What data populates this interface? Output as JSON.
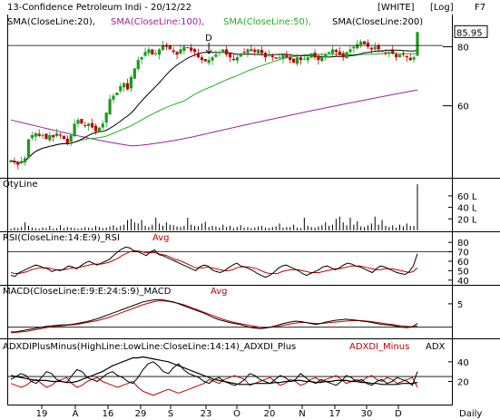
{
  "header": {
    "title": "13-Confidence Petroleum Indi - 20/12/22",
    "theme_badge": "[WHITE]",
    "scale_badge": "[Log]",
    "fkey": "F7"
  },
  "legend": {
    "sma20": "SMA(CloseLine:20),",
    "sma100": "SMA(CloseLine:100),",
    "sma50": "SMA(CloseLine:50),",
    "sma200": "SMA(CloseLine:200)"
  },
  "colors": {
    "sma20": "#000000",
    "sma100": "#a020a0",
    "sma50": "#22b022",
    "sma200": "#000000",
    "up": "#1a9a1a",
    "down": "#c00000",
    "rsi": "#000000",
    "rsi_avg": "#c00000",
    "macd": "#000000",
    "macd_avg": "#c00000",
    "adx": "#000000",
    "di_plus": "#000000",
    "di_minus": "#c00000"
  },
  "panels": {
    "qty_title": "QtyLine",
    "rsi_title": "RSI(CloseLine:14:E:9)_RSI",
    "rsi_avg": "Avg",
    "macd_title": "MACD(CloseLine:E:9:E:24:S:9)_MACD",
    "macd_avg": "Avg",
    "adx_title": "ADXDIPlusMinus(HighLine:LowLine:CloseLine:14:14)_ADXDI_Plus",
    "adx_minus": "ADXDI_Minus",
    "adx_adx": "ADX"
  },
  "price_marker": {
    "label": "D"
  },
  "footer": {
    "period": "Daily"
  },
  "chart_data": [
    {
      "type": "candlestick",
      "title": "13-Confidence Petroleum Indi - 20/12/22",
      "scale": "log",
      "yaxis_ticks": [
        60,
        80
      ],
      "last_price_label": "85.95",
      "x_ticks": [
        "19",
        "A",
        "16",
        "29",
        "S",
        "23",
        "O",
        "20",
        "N",
        "17",
        "30",
        "D"
      ],
      "close": [
        46,
        45.5,
        45,
        45.8,
        46.5,
        51,
        52,
        52.5,
        51.8,
        52,
        51,
        52,
        51.5,
        52.5,
        52,
        51,
        50,
        52,
        55,
        56,
        55,
        54.5,
        55,
        54,
        53,
        54,
        55,
        58,
        62,
        63,
        64,
        66,
        67,
        65,
        69,
        72,
        75,
        76,
        78,
        79,
        77,
        77.5,
        79,
        80.5,
        80,
        79,
        78,
        77,
        79,
        80,
        79.5,
        78.5,
        78,
        76,
        75,
        74.5,
        75,
        76,
        77,
        78,
        79,
        77,
        76,
        75,
        76,
        77.5,
        78,
        79,
        78.5,
        78,
        79,
        77.5,
        76,
        77,
        76,
        75.5,
        76,
        77,
        76,
        75,
        74,
        76,
        75,
        75.5,
        76,
        77.5,
        76,
        75,
        76,
        77,
        78,
        79,
        78,
        77,
        76,
        78,
        79,
        80,
        81,
        82,
        81,
        80,
        79,
        80,
        79,
        78,
        77.5,
        78,
        77.5,
        76,
        77,
        77,
        76,
        75,
        76,
        85.95
      ],
      "series": [
        {
          "name": "SMA(CloseLine:20)",
          "role": "sma20"
        },
        {
          "name": "SMA(CloseLine:100)",
          "role": "sma100"
        },
        {
          "name": "SMA(CloseLine:50)",
          "role": "sma50"
        },
        {
          "name": "SMA(CloseLine:200)",
          "role": "sma200"
        }
      ]
    },
    {
      "type": "bar",
      "title": "QtyLine",
      "yaxis_ticks": [
        "60 L",
        "40 L",
        "20 L"
      ],
      "values": [
        3,
        5,
        4,
        6,
        14,
        8,
        5,
        4,
        3,
        5,
        4,
        8,
        3,
        4,
        9,
        4,
        6,
        5,
        4,
        3,
        4,
        6,
        5,
        4,
        8,
        6,
        4,
        5,
        7,
        9,
        5,
        8,
        10,
        18,
        20,
        14,
        12,
        18,
        8,
        6,
        10,
        22,
        12,
        8,
        14,
        10,
        9,
        7,
        6,
        8,
        22,
        10,
        8,
        7,
        12,
        15,
        6,
        8,
        7,
        5,
        10,
        6,
        8,
        4,
        6,
        9,
        5,
        6,
        4,
        5,
        7,
        8,
        5,
        4,
        6,
        7,
        12,
        5,
        6,
        6,
        10,
        5,
        4,
        22,
        8,
        6,
        5,
        7,
        9,
        14,
        8,
        10,
        20,
        24,
        14,
        9,
        22,
        10,
        16,
        7,
        6,
        9,
        12,
        24,
        10,
        18,
        8,
        6,
        9,
        5,
        10,
        7,
        12,
        8,
        8,
        80
      ]
    },
    {
      "type": "line",
      "title": "RSI(CloseLine:14:E:9)_RSI",
      "yaxis_ticks": [
        80,
        70,
        60,
        50,
        40
      ],
      "rsi": [
        45,
        44,
        48,
        50,
        52,
        54,
        56,
        55,
        53,
        52,
        49,
        51,
        50,
        52,
        55,
        54,
        52,
        55,
        58,
        60,
        58,
        56,
        58,
        60,
        62,
        66,
        70,
        73,
        75,
        74,
        71,
        70,
        68,
        66,
        70,
        72,
        67,
        66,
        64,
        62,
        60,
        58,
        56,
        54,
        52,
        50,
        54,
        56,
        55,
        51,
        49,
        48,
        50,
        53,
        56,
        58,
        55,
        54,
        52,
        50,
        47,
        45,
        43,
        45,
        48,
        52,
        55,
        56,
        54,
        52,
        50,
        47,
        45,
        47,
        49,
        51,
        54,
        55,
        53,
        51,
        53,
        56,
        58,
        57,
        55,
        54,
        52,
        50,
        48,
        52,
        55,
        54,
        52,
        50,
        48,
        47,
        46,
        49,
        55,
        68
      ],
      "avg": [
        48,
        47,
        47,
        48,
        49,
        51,
        52,
        53,
        53,
        53,
        52,
        51,
        51,
        51,
        52,
        53,
        53,
        54,
        55,
        56,
        57,
        57,
        57,
        58,
        59,
        61,
        63,
        66,
        68,
        70,
        71,
        71,
        70,
        69,
        69,
        69,
        68,
        67,
        66,
        64,
        62,
        61,
        59,
        57,
        55,
        53,
        53,
        53,
        54,
        53,
        52,
        51,
        50,
        50,
        51,
        53,
        54,
        54,
        54,
        53,
        52,
        50,
        48,
        47,
        47,
        47,
        49,
        50,
        51,
        51,
        51,
        50,
        49,
        48,
        48,
        48,
        49,
        50,
        51,
        52,
        52,
        53,
        54,
        55,
        55,
        55,
        54,
        53,
        52,
        51,
        51,
        52,
        52,
        52,
        51,
        50,
        49,
        48,
        49,
        53
      ]
    },
    {
      "type": "line",
      "title": "MACD(CloseLine:E:9:E:24:S:9)_MACD",
      "yaxis_ticks": [
        5
      ],
      "macd": [
        -1,
        -1,
        -0.8,
        -0.6,
        -0.4,
        -0.2,
        0,
        0.2,
        0.3,
        0.4,
        0.5,
        0.5,
        0.6,
        0.8,
        1,
        1.2,
        1.5,
        1.8,
        2.2,
        2.6,
        3,
        3.4,
        3.8,
        4.2,
        4.6,
        5,
        5.4,
        5.6,
        5.8,
        5.9,
        5.8,
        5.6,
        5.4,
        5,
        4.6,
        4.2,
        3.8,
        3.4,
        3,
        2.5,
        2,
        1.6,
        1.3,
        1,
        0.8,
        0.6,
        0.3,
        0,
        -0.2,
        -0.3,
        -0.2,
        0,
        0.3,
        0.6,
        0.9,
        1.1,
        1.3,
        1.2,
        1,
        0.8,
        0.6,
        0.8,
        1.1,
        1.3,
        1.5,
        1.6,
        1.7,
        1.6,
        1.5,
        1.3,
        1.2,
        1,
        0.8,
        0.6,
        0.5,
        0.4,
        0.2,
        0,
        -0.1,
        0.1,
        0.8
      ],
      "avg": [
        -1.2,
        -1.1,
        -1,
        -0.9,
        -0.7,
        -0.5,
        -0.3,
        -0.1,
        0.1,
        0.2,
        0.3,
        0.4,
        0.5,
        0.6,
        0.8,
        1,
        1.2,
        1.4,
        1.7,
        2,
        2.4,
        2.8,
        3.2,
        3.6,
        4,
        4.4,
        4.8,
        5.1,
        5.4,
        5.6,
        5.6,
        5.5,
        5.3,
        5.1,
        4.8,
        4.4,
        4,
        3.6,
        3.2,
        2.8,
        2.4,
        2,
        1.6,
        1.3,
        1,
        0.8,
        0.6,
        0.4,
        0.2,
        0,
        -0.1,
        0,
        0.1,
        0.3,
        0.5,
        0.7,
        0.9,
        1,
        1,
        0.9,
        0.8,
        0.8,
        0.9,
        1,
        1.1,
        1.2,
        1.3,
        1.4,
        1.4,
        1.4,
        1.3,
        1.2,
        1,
        0.9,
        0.7,
        0.6,
        0.4,
        0.3,
        0.2,
        0.1,
        0.3
      ]
    },
    {
      "type": "line",
      "title": "ADXDIPlusMinus(HighLine:LowLine:CloseLine:14:14)_ADXDI_Plus",
      "yaxis_ticks": [
        40,
        20
      ],
      "di_plus": [
        22,
        25,
        28,
        26,
        20,
        18,
        24,
        30,
        28,
        22,
        20,
        19,
        26,
        32,
        30,
        24,
        22,
        20,
        24,
        28,
        30,
        26,
        24,
        20,
        18,
        24,
        32,
        38,
        40,
        36,
        30,
        28,
        34,
        38,
        32,
        28,
        26,
        24,
        20,
        18,
        22,
        24,
        20,
        18,
        16,
        18,
        22,
        28,
        26,
        22,
        20,
        18,
        22,
        26,
        24,
        20,
        22,
        28,
        24,
        20,
        18,
        22,
        20,
        18,
        16,
        20,
        26,
        24,
        20,
        22,
        18,
        16,
        20,
        22,
        18,
        20,
        24,
        22,
        20,
        16,
        30
      ],
      "di_minus": [
        18,
        16,
        14,
        16,
        20,
        22,
        18,
        14,
        16,
        20,
        22,
        24,
        18,
        14,
        16,
        20,
        22,
        24,
        20,
        18,
        16,
        14,
        16,
        18,
        20,
        14,
        10,
        8,
        6,
        8,
        10,
        12,
        10,
        8,
        10,
        12,
        14,
        16,
        18,
        22,
        20,
        18,
        22,
        24,
        26,
        24,
        22,
        16,
        18,
        20,
        22,
        24,
        20,
        16,
        18,
        22,
        20,
        16,
        18,
        22,
        24,
        20,
        22,
        24,
        26,
        22,
        18,
        20,
        22,
        20,
        24,
        26,
        22,
        20,
        24,
        22,
        18,
        20,
        22,
        24,
        14
      ],
      "adx": [
        26,
        25,
        24,
        23,
        22,
        21,
        21,
        21,
        20,
        20,
        20,
        19,
        19,
        20,
        22,
        24,
        26,
        28,
        30,
        33,
        36,
        38,
        40,
        42,
        44,
        44,
        45,
        44,
        43,
        42,
        41,
        40,
        38,
        36,
        34,
        32,
        30,
        28,
        26,
        24,
        22,
        21,
        20,
        19,
        18,
        17,
        17,
        17,
        18,
        18,
        18,
        18,
        19,
        19,
        20,
        20,
        21,
        21,
        20,
        20,
        19,
        19,
        20,
        20,
        21,
        21,
        21,
        20,
        20,
        19,
        19,
        18,
        18,
        17,
        17,
        17,
        17,
        18,
        18,
        18,
        19
      ]
    }
  ]
}
